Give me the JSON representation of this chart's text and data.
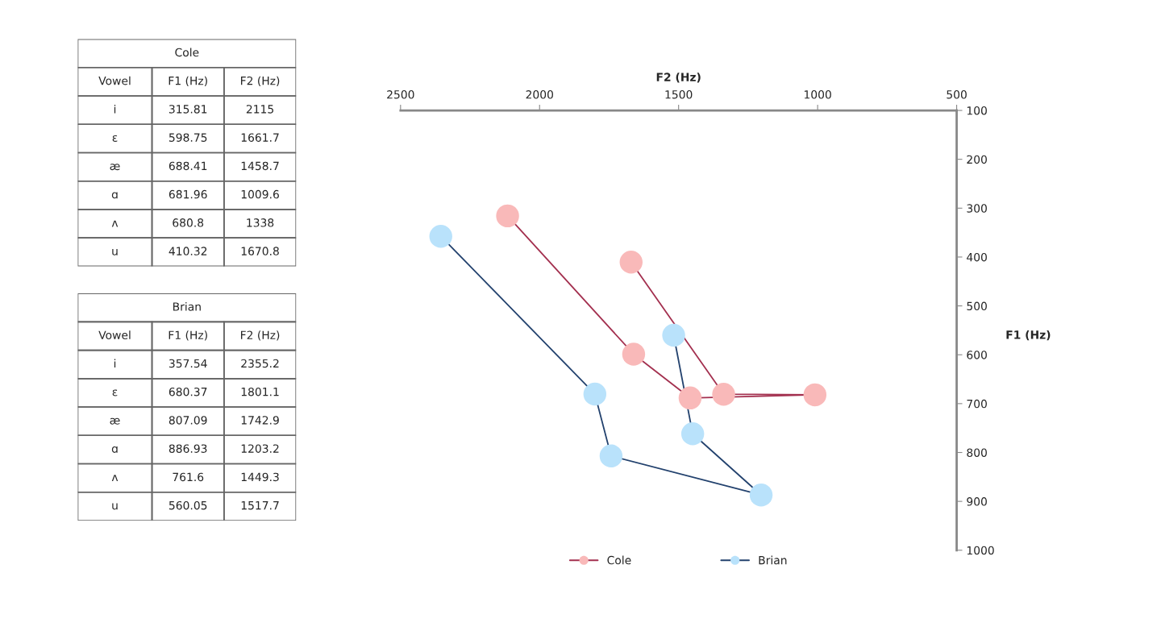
{
  "chart_data": [
    {
      "type": "other",
      "title": "Cole",
      "annotations": [
        "Vowel",
        "F1 (Hz)",
        "F2 (Hz)",
        "i",
        "315.81",
        "2115",
        "ɛ",
        "598.75",
        "1661.7",
        "æ",
        "688.41",
        "1458.7",
        "ɑ",
        "681.96",
        "1009.6",
        "ʌ",
        "680.8",
        "1338",
        "u",
        "410.32",
        "1670.8"
      ]
    },
    {
      "type": "other",
      "title": "Brian",
      "annotations": [
        "Vowel",
        "F1 (Hz)",
        "F2 (Hz)",
        "i",
        "357.54",
        "2355.2",
        "ɛ",
        "680.37",
        "1801.1",
        "æ",
        "807.09",
        "1742.9",
        "ɑ",
        "886.93",
        "1203.2",
        "ʌ",
        "761.6",
        "1449.3",
        "u",
        "560.05",
        "1517.7"
      ]
    },
    {
      "type": "line",
      "xlabel": "F2 (Hz)",
      "ylabel": "F1 (Hz)",
      "series": [
        {
          "name": "Cole",
          "color": "#a3304f",
          "colors": [
            "#f9b9b9",
            "#f9b9b9",
            "#f9b9b9",
            "#f9b9b9",
            "#f9b9b9",
            "#f9b9b9"
          ],
          "x": [
            2115,
            1661.7,
            1458.7,
            1009.6,
            1338,
            1670.8
          ],
          "values": [
            315.81,
            598.75,
            688.41,
            681.96,
            680.8,
            410.32
          ]
        },
        {
          "name": "Brian",
          "color": "#23426e",
          "colors": [
            "#b9e2fb",
            "#b9e2fb",
            "#b9e2fb",
            "#b9e2fb",
            "#b9e2fb",
            "#b9e2fb"
          ],
          "x": [
            2355.2,
            1801.1,
            1742.9,
            1203.2,
            1449.3,
            1517.7
          ],
          "values": [
            357.54,
            680.37,
            807.09,
            886.93,
            761.6,
            560.05
          ]
        }
      ],
      "xlim": [
        2500,
        500
      ],
      "xticks": [
        2500,
        2000,
        1500,
        1000,
        500
      ],
      "ylim": [
        1000,
        100
      ],
      "yticks": [
        100,
        200,
        300,
        400,
        500,
        600,
        700,
        800,
        900,
        1000
      ],
      "grid": false,
      "legend": "bottom",
      "marker": "circle",
      "line_style": "solid"
    }
  ]
}
